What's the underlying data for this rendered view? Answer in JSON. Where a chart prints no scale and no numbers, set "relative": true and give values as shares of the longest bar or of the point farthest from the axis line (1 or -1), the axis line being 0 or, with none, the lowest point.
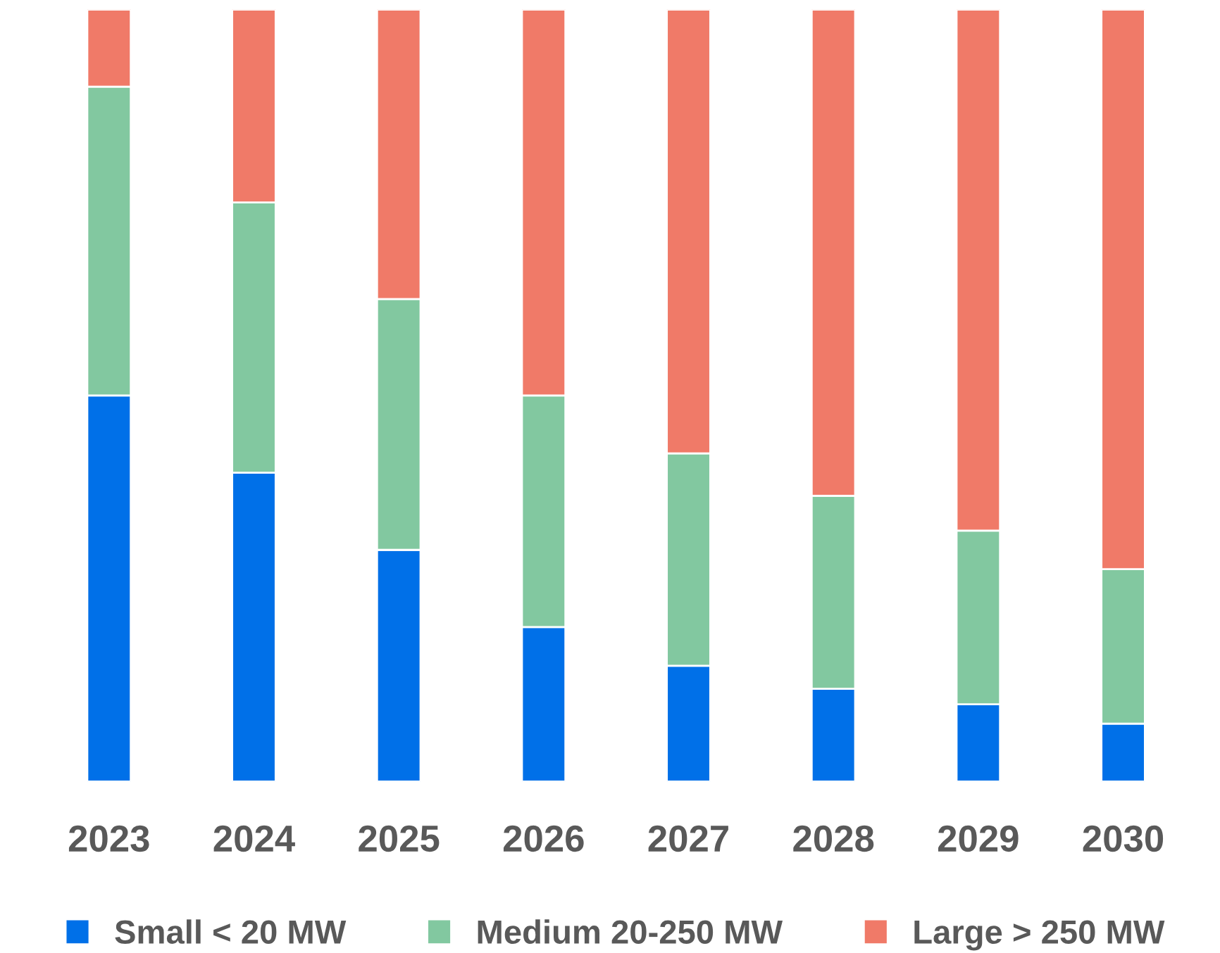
{
  "chart_data": {
    "type": "bar",
    "stacked": true,
    "relative": true,
    "categories": [
      "2023",
      "2024",
      "2025",
      "2026",
      "2027",
      "2028",
      "2029",
      "2030"
    ],
    "series": [
      {
        "name": "Small < 20 MW",
        "color": "#0070e8",
        "values": [
          0.5,
          0.4,
          0.3,
          0.2,
          0.15,
          0.12,
          0.1,
          0.075
        ]
      },
      {
        "name": "Medium 20-250 MW",
        "color": "#82c8a0",
        "values": [
          0.4,
          0.35,
          0.325,
          0.3,
          0.275,
          0.25,
          0.225,
          0.2
        ]
      },
      {
        "name": "Large > 250 MW",
        "color": "#f07a68",
        "values": [
          0.1,
          0.25,
          0.375,
          0.5,
          0.575,
          0.63,
          0.675,
          0.725
        ]
      }
    ],
    "legend": "bottom",
    "grid": false
  }
}
